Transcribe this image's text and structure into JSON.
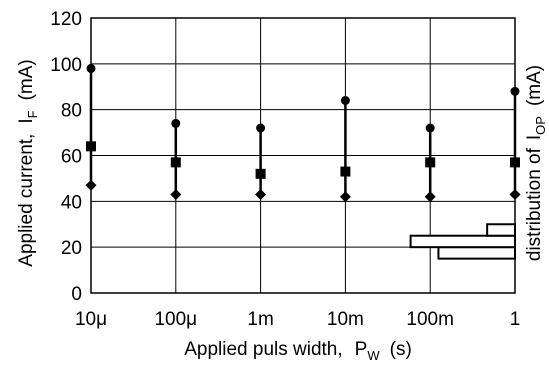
{
  "chart_data": {
    "type": "scatter",
    "xlabel": {
      "main": "Applied puls width,",
      "symbol": "P",
      "subscript": "W",
      "unit": "(s)"
    },
    "ylabel": {
      "main": "Applied current,",
      "symbol": "I",
      "subscript": "F",
      "unit": "(mA)"
    },
    "ylabel_right": {
      "main": "distribution of",
      "symbol": "I",
      "subscript": "OP",
      "unit": "(mA)"
    },
    "x_tick_labels": [
      "10μ",
      "100μ",
      "1m",
      "10m",
      "100m",
      "1"
    ],
    "x_tick_values": [
      1e-05,
      0.0001,
      0.001,
      0.01,
      0.1,
      1
    ],
    "x_scale": "log",
    "y_ticks": [
      0,
      20,
      40,
      60,
      80,
      100,
      120
    ],
    "ylim": [
      0,
      120
    ],
    "grid": true,
    "series": [
      {
        "marker": "circle",
        "role": "max",
        "values": [
          98,
          74,
          72,
          84,
          72,
          88
        ]
      },
      {
        "marker": "square",
        "role": "typical",
        "values": [
          64,
          57,
          52,
          53,
          57,
          57
        ]
      },
      {
        "marker": "diamond",
        "role": "min",
        "values": [
          47,
          43,
          43,
          42,
          42,
          43
        ]
      }
    ],
    "distribution_histogram": {
      "orientation": "horizontal",
      "bins": [
        {
          "from": 15,
          "to": 20,
          "relative_count": 0.33
        },
        {
          "from": 20,
          "to": 25,
          "relative_count": 0.45
        },
        {
          "from": 25,
          "to": 30,
          "relative_count": 0.12
        }
      ]
    }
  }
}
